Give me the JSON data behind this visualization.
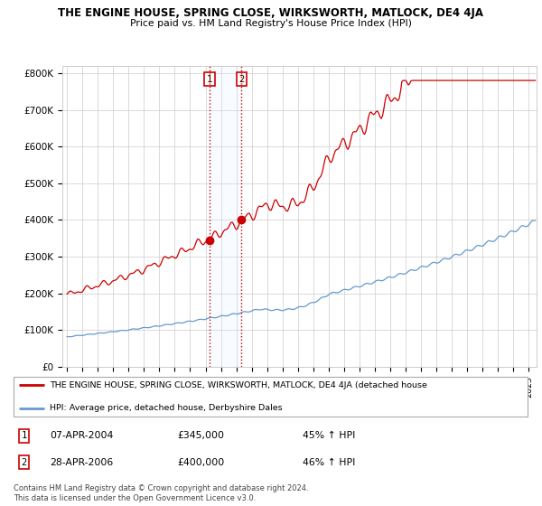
{
  "title": "THE ENGINE HOUSE, SPRING CLOSE, WIRKSWORTH, MATLOCK, DE4 4JA",
  "subtitle": "Price paid vs. HM Land Registry's House Price Index (HPI)",
  "ylabel_ticks": [
    "£0",
    "£100K",
    "£200K",
    "£300K",
    "£400K",
    "£500K",
    "£600K",
    "£700K",
    "£800K"
  ],
  "ytick_values": [
    0,
    100000,
    200000,
    300000,
    400000,
    500000,
    600000,
    700000,
    800000
  ],
  "ylim": [
    0,
    820000
  ],
  "xlim_start": 1994.7,
  "xlim_end": 2025.5,
  "xtick_years": [
    1995,
    1996,
    1997,
    1998,
    1999,
    2000,
    2001,
    2002,
    2003,
    2004,
    2005,
    2006,
    2007,
    2008,
    2009,
    2010,
    2011,
    2012,
    2013,
    2014,
    2015,
    2016,
    2017,
    2018,
    2019,
    2020,
    2021,
    2022,
    2023,
    2024,
    2025
  ],
  "hpi_color": "#6699cc",
  "price_color": "#cc0000",
  "vline_color": "#cc0000",
  "shade_color": "#ddeeff",
  "sale1_x": 2004.27,
  "sale1_y": 345000,
  "sale1_label": "1",
  "sale1_date": "07-APR-2004",
  "sale1_price": "£345,000",
  "sale1_hpi": "45% ↑ HPI",
  "sale2_x": 2006.33,
  "sale2_y": 400000,
  "sale2_label": "2",
  "sale2_date": "28-APR-2006",
  "sale2_price": "£400,000",
  "sale2_hpi": "46% ↑ HPI",
  "legend_red_label": "THE ENGINE HOUSE, SPRING CLOSE, WIRKSWORTH, MATLOCK, DE4 4JA (detached house",
  "legend_blue_label": "HPI: Average price, detached house, Derbyshire Dales",
  "footnote": "Contains HM Land Registry data © Crown copyright and database right 2024.\nThis data is licensed under the Open Government Licence v3.0.",
  "bg_color": "#ffffff",
  "grid_color": "#cccccc"
}
